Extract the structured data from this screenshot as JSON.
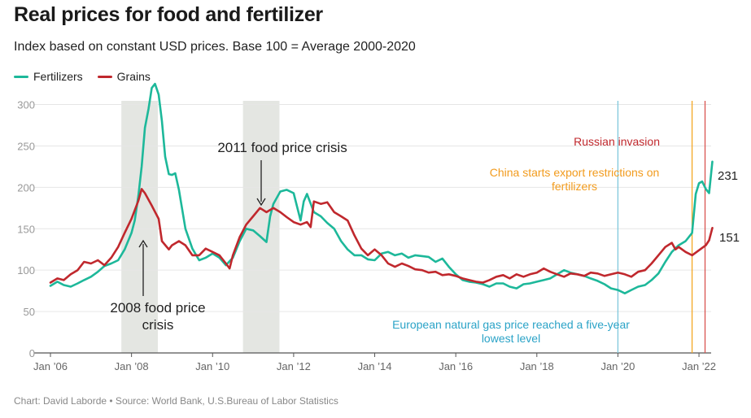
{
  "header": {
    "title": "Real prices for food and fertilizer",
    "subtitle": "Index based on constant USD prices. Base 100 = Average 2000-2020"
  },
  "legend": [
    {
      "label": "Fertilizers",
      "color": "#1db89a"
    },
    {
      "label": "Grains",
      "color": "#c0282d"
    }
  ],
  "footer": {
    "source": "Chart: David Laborde • Source: World Bank, U.S.Bureau of Labor Statistics"
  },
  "colors": {
    "fertilizers": "#1db89a",
    "grains": "#c0282d",
    "crisis_shade": "#e4e6e2",
    "gas_line": "#7ec8dc",
    "china_line": "#f5a623",
    "invasion_line": "#d9534f"
  },
  "annotations": {
    "crisis_2011": "2011 food price crisis",
    "crisis_2008_line1": "2008 food price",
    "crisis_2008_line2": "crisis",
    "gas_line1": "European natural gas price reached a five-year",
    "gas_line2": "lowest level",
    "china_line1": "China starts export restrictions on",
    "china_line2": "fertilizers",
    "invasion": "Russian invasion",
    "end_fertilizers": "231",
    "end_grains": "151"
  },
  "chart_data": {
    "type": "line",
    "xlim": [
      2006.0,
      2022.3
    ],
    "ylim": [
      0,
      330
    ],
    "yticks": [
      0,
      50,
      100,
      150,
      200,
      250,
      300
    ],
    "xticks": [
      {
        "value": 2006,
        "label": "Jan ’06"
      },
      {
        "value": 2008,
        "label": "Jan ’08"
      },
      {
        "value": 2010,
        "label": "Jan ’10"
      },
      {
        "value": 2012,
        "label": "Jan ’12"
      },
      {
        "value": 2014,
        "label": "Jan ’14"
      },
      {
        "value": 2016,
        "label": "Jan ’16"
      },
      {
        "value": 2018,
        "label": "Jan ’18"
      },
      {
        "value": 2020,
        "label": "Jan ’20"
      },
      {
        "value": 2022,
        "label": "Jan ’22"
      }
    ],
    "grid": true,
    "legend_position": "top-left",
    "shaded_periods": [
      {
        "from": 2007.75,
        "to": 2008.65
      },
      {
        "from": 2010.75,
        "to": 2011.65
      }
    ],
    "events": [
      {
        "date": 2020.0,
        "color_key": "gas_line"
      },
      {
        "date": 2021.83,
        "color_key": "china_line"
      },
      {
        "date": 2022.15,
        "color_key": "invasion_line"
      }
    ],
    "series": [
      {
        "name": "Fertilizers",
        "color_key": "fertilizers",
        "points": [
          [
            2006.0,
            81
          ],
          [
            2006.17,
            86
          ],
          [
            2006.33,
            82
          ],
          [
            2006.5,
            80
          ],
          [
            2006.67,
            84
          ],
          [
            2006.83,
            88
          ],
          [
            2007.0,
            92
          ],
          [
            2007.17,
            98
          ],
          [
            2007.33,
            105
          ],
          [
            2007.5,
            108
          ],
          [
            2007.67,
            112
          ],
          [
            2007.83,
            125
          ],
          [
            2008.0,
            145
          ],
          [
            2008.08,
            160
          ],
          [
            2008.17,
            190
          ],
          [
            2008.25,
            225
          ],
          [
            2008.33,
            272
          ],
          [
            2008.42,
            295
          ],
          [
            2008.5,
            320
          ],
          [
            2008.58,
            325
          ],
          [
            2008.67,
            312
          ],
          [
            2008.75,
            280
          ],
          [
            2008.83,
            237
          ],
          [
            2008.92,
            216
          ],
          [
            2009.0,
            215
          ],
          [
            2009.08,
            217
          ],
          [
            2009.17,
            197
          ],
          [
            2009.33,
            150
          ],
          [
            2009.5,
            126
          ],
          [
            2009.67,
            112
          ],
          [
            2009.83,
            115
          ],
          [
            2010.0,
            120
          ],
          [
            2010.17,
            115
          ],
          [
            2010.33,
            106
          ],
          [
            2010.5,
            115
          ],
          [
            2010.67,
            135
          ],
          [
            2010.83,
            150
          ],
          [
            2011.0,
            148
          ],
          [
            2011.17,
            141
          ],
          [
            2011.33,
            134
          ],
          [
            2011.42,
            165
          ],
          [
            2011.5,
            180
          ],
          [
            2011.67,
            195
          ],
          [
            2011.83,
            197
          ],
          [
            2012.0,
            193
          ],
          [
            2012.17,
            160
          ],
          [
            2012.25,
            183
          ],
          [
            2012.33,
            192
          ],
          [
            2012.5,
            170
          ],
          [
            2012.67,
            165
          ],
          [
            2012.83,
            157
          ],
          [
            2013.0,
            150
          ],
          [
            2013.17,
            135
          ],
          [
            2013.33,
            125
          ],
          [
            2013.5,
            118
          ],
          [
            2013.67,
            118
          ],
          [
            2013.83,
            113
          ],
          [
            2014.0,
            112
          ],
          [
            2014.17,
            120
          ],
          [
            2014.33,
            122
          ],
          [
            2014.5,
            118
          ],
          [
            2014.67,
            120
          ],
          [
            2014.83,
            115
          ],
          [
            2015.0,
            118
          ],
          [
            2015.17,
            117
          ],
          [
            2015.33,
            116
          ],
          [
            2015.5,
            110
          ],
          [
            2015.67,
            114
          ],
          [
            2015.83,
            104
          ],
          [
            2016.0,
            95
          ],
          [
            2016.17,
            88
          ],
          [
            2016.33,
            86
          ],
          [
            2016.5,
            85
          ],
          [
            2016.67,
            83
          ],
          [
            2016.83,
            80
          ],
          [
            2017.0,
            84
          ],
          [
            2017.17,
            84
          ],
          [
            2017.33,
            80
          ],
          [
            2017.5,
            78
          ],
          [
            2017.67,
            83
          ],
          [
            2017.83,
            84
          ],
          [
            2018.0,
            86
          ],
          [
            2018.17,
            88
          ],
          [
            2018.33,
            90
          ],
          [
            2018.5,
            95
          ],
          [
            2018.67,
            100
          ],
          [
            2018.83,
            97
          ],
          [
            2019.0,
            95
          ],
          [
            2019.17,
            93
          ],
          [
            2019.33,
            90
          ],
          [
            2019.5,
            87
          ],
          [
            2019.67,
            83
          ],
          [
            2019.83,
            78
          ],
          [
            2020.0,
            76
          ],
          [
            2020.17,
            72
          ],
          [
            2020.33,
            76
          ],
          [
            2020.5,
            80
          ],
          [
            2020.67,
            82
          ],
          [
            2020.83,
            88
          ],
          [
            2021.0,
            96
          ],
          [
            2021.17,
            110
          ],
          [
            2021.33,
            122
          ],
          [
            2021.5,
            130
          ],
          [
            2021.67,
            135
          ],
          [
            2021.83,
            145
          ],
          [
            2021.92,
            192
          ],
          [
            2022.0,
            205
          ],
          [
            2022.08,
            207
          ],
          [
            2022.17,
            198
          ],
          [
            2022.25,
            193
          ],
          [
            2022.33,
            231
          ]
        ]
      },
      {
        "name": "Grains",
        "color_key": "grains",
        "points": [
          [
            2006.0,
            85
          ],
          [
            2006.17,
            90
          ],
          [
            2006.33,
            88
          ],
          [
            2006.5,
            95
          ],
          [
            2006.67,
            100
          ],
          [
            2006.83,
            110
          ],
          [
            2007.0,
            108
          ],
          [
            2007.17,
            112
          ],
          [
            2007.33,
            106
          ],
          [
            2007.5,
            115
          ],
          [
            2007.67,
            128
          ],
          [
            2007.83,
            145
          ],
          [
            2008.0,
            162
          ],
          [
            2008.17,
            184
          ],
          [
            2008.25,
            198
          ],
          [
            2008.33,
            193
          ],
          [
            2008.5,
            178
          ],
          [
            2008.67,
            162
          ],
          [
            2008.75,
            135
          ],
          [
            2008.92,
            125
          ],
          [
            2009.0,
            130
          ],
          [
            2009.17,
            135
          ],
          [
            2009.33,
            130
          ],
          [
            2009.5,
            118
          ],
          [
            2009.67,
            118
          ],
          [
            2009.83,
            126
          ],
          [
            2010.0,
            122
          ],
          [
            2010.17,
            118
          ],
          [
            2010.33,
            108
          ],
          [
            2010.42,
            102
          ],
          [
            2010.5,
            118
          ],
          [
            2010.67,
            140
          ],
          [
            2010.83,
            155
          ],
          [
            2011.0,
            165
          ],
          [
            2011.17,
            175
          ],
          [
            2011.33,
            170
          ],
          [
            2011.5,
            175
          ],
          [
            2011.67,
            170
          ],
          [
            2011.83,
            164
          ],
          [
            2012.0,
            158
          ],
          [
            2012.17,
            155
          ],
          [
            2012.33,
            158
          ],
          [
            2012.42,
            152
          ],
          [
            2012.5,
            183
          ],
          [
            2012.67,
            180
          ],
          [
            2012.83,
            182
          ],
          [
            2013.0,
            170
          ],
          [
            2013.17,
            165
          ],
          [
            2013.33,
            160
          ],
          [
            2013.5,
            142
          ],
          [
            2013.67,
            126
          ],
          [
            2013.83,
            118
          ],
          [
            2014.0,
            125
          ],
          [
            2014.17,
            118
          ],
          [
            2014.33,
            108
          ],
          [
            2014.5,
            104
          ],
          [
            2014.67,
            108
          ],
          [
            2014.83,
            105
          ],
          [
            2015.0,
            101
          ],
          [
            2015.17,
            100
          ],
          [
            2015.33,
            97
          ],
          [
            2015.5,
            98
          ],
          [
            2015.67,
            94
          ],
          [
            2015.83,
            95
          ],
          [
            2016.0,
            93
          ],
          [
            2016.17,
            90
          ],
          [
            2016.33,
            88
          ],
          [
            2016.5,
            86
          ],
          [
            2016.67,
            85
          ],
          [
            2016.83,
            88
          ],
          [
            2017.0,
            92
          ],
          [
            2017.17,
            94
          ],
          [
            2017.33,
            90
          ],
          [
            2017.5,
            95
          ],
          [
            2017.67,
            92
          ],
          [
            2017.83,
            95
          ],
          [
            2018.0,
            97
          ],
          [
            2018.17,
            102
          ],
          [
            2018.33,
            98
          ],
          [
            2018.5,
            95
          ],
          [
            2018.67,
            92
          ],
          [
            2018.83,
            96
          ],
          [
            2019.0,
            95
          ],
          [
            2019.17,
            93
          ],
          [
            2019.33,
            97
          ],
          [
            2019.5,
            96
          ],
          [
            2019.67,
            93
          ],
          [
            2019.83,
            95
          ],
          [
            2020.0,
            97
          ],
          [
            2020.17,
            95
          ],
          [
            2020.33,
            92
          ],
          [
            2020.5,
            98
          ],
          [
            2020.67,
            100
          ],
          [
            2020.83,
            108
          ],
          [
            2021.0,
            118
          ],
          [
            2021.17,
            128
          ],
          [
            2021.33,
            133
          ],
          [
            2021.42,
            125
          ],
          [
            2021.5,
            128
          ],
          [
            2021.67,
            122
          ],
          [
            2021.83,
            118
          ],
          [
            2022.0,
            124
          ],
          [
            2022.17,
            130
          ],
          [
            2022.25,
            136
          ],
          [
            2022.33,
            151
          ]
        ]
      }
    ]
  }
}
